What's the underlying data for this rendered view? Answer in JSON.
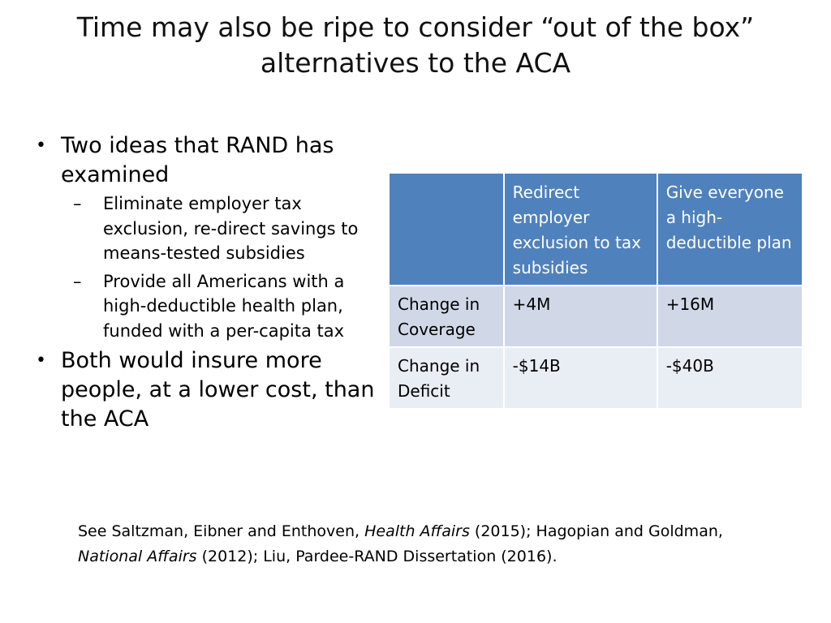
{
  "title": {
    "line1": "Time may also be ripe to consider “out of the box”",
    "line2": "alternatives to the ACA"
  },
  "bullets": [
    {
      "text": "Two ideas that RAND has examined",
      "subs": [
        "Eliminate employer tax exclusion, re-direct savings to means-tested subsidies",
        "Provide all Americans with a high-deductible health plan, funded with a per-capita tax"
      ]
    },
    {
      "text": "Both would insure more people, at a lower cost, than the ACA"
    }
  ],
  "bullet_mark": "•",
  "sub_mark": "–",
  "table": {
    "headers": [
      "",
      "Redirect employer exclusion to tax subsidies",
      "Give everyone a high-deductible plan"
    ],
    "rows": [
      [
        "Change in Coverage",
        "+4M",
        "+16M"
      ],
      [
        "Change in Deficit",
        "-$14B",
        "-$40B"
      ]
    ],
    "header_color": "#4f81bd",
    "row_colors": [
      "#d0d8e8",
      "#e9edf4"
    ]
  },
  "citation": {
    "part1": "See Saltzman, Eibner and Enthoven, ",
    "journal1": "Health Affairs",
    "part2": " (2015); Hagopian and Goldman, ",
    "journal2": "National Affairs",
    "part3": " (2012); Liu, Pardee-RAND Dissertation (2016)."
  }
}
